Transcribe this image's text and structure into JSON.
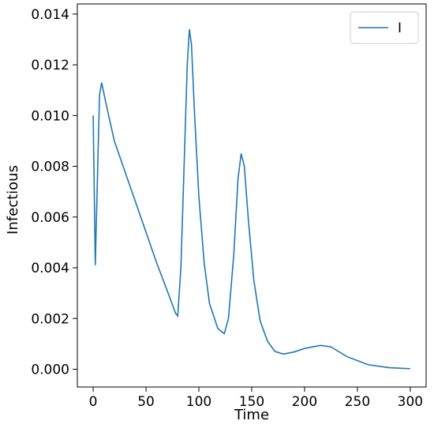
{
  "chart_data": {
    "type": "line",
    "x_label": "Time",
    "y_label": "Infectious",
    "x": [
      0,
      2,
      4,
      6,
      8,
      12,
      20,
      30,
      40,
      50,
      60,
      70,
      78,
      80,
      83,
      86,
      89,
      91,
      93,
      96,
      100,
      105,
      110,
      118,
      124,
      128,
      133,
      137,
      140,
      143,
      147,
      152,
      158,
      165,
      172,
      180,
      190,
      200,
      215,
      225,
      240,
      260,
      280,
      300
    ],
    "series": [
      {
        "name": "I",
        "color": "#1f77b4",
        "values": [
          0.01,
          0.0041,
          0.0075,
          0.0108,
          0.0113,
          0.0105,
          0.009,
          0.0078,
          0.0066,
          0.0054,
          0.0042,
          0.0031,
          0.0022,
          0.0021,
          0.004,
          0.008,
          0.012,
          0.0134,
          0.0128,
          0.01,
          0.0068,
          0.0042,
          0.0026,
          0.0016,
          0.0014,
          0.002,
          0.0045,
          0.0075,
          0.0085,
          0.008,
          0.0058,
          0.0035,
          0.0019,
          0.0011,
          0.0007,
          0.0006,
          0.00068,
          0.00082,
          0.00094,
          0.00088,
          0.0005,
          0.00018,
          6e-05,
          2e-05
        ]
      }
    ],
    "xlim": [
      -15,
      315
    ],
    "ylim": [
      -0.0007,
      0.0144
    ],
    "xticks": [
      0,
      50,
      100,
      150,
      200,
      250,
      300
    ],
    "yticks": [
      {
        "value": 0,
        "label": "0.000"
      },
      {
        "value": 0.002,
        "label": "0.002"
      },
      {
        "value": 0.004,
        "label": "0.004"
      },
      {
        "value": 0.006,
        "label": "0.006"
      },
      {
        "value": 0.008,
        "label": "0.008"
      },
      {
        "value": 0.01,
        "label": "0.010"
      },
      {
        "value": 0.012,
        "label": "0.012"
      },
      {
        "value": 0.014,
        "label": "0.014"
      }
    ],
    "grid": false,
    "legend": "upper-right"
  }
}
